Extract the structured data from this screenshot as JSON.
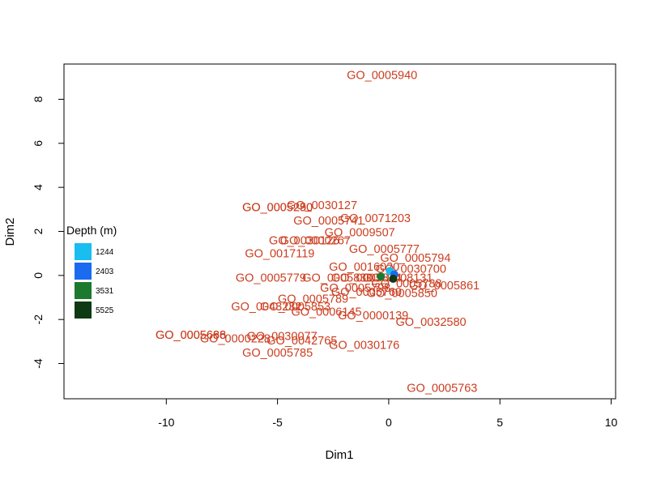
{
  "chart_data": {
    "type": "scatter",
    "xlabel": "Dim1",
    "ylabel": "Dim2",
    "xlim": [
      -14.6,
      10.2
    ],
    "ylim": [
      -5.6,
      9.6
    ],
    "x_ticks": [
      -10,
      -5,
      0,
      5,
      10
    ],
    "y_ticks": [
      -4,
      -2,
      0,
      2,
      4,
      6,
      8
    ],
    "x_tick_labels": [
      "-10",
      "-5",
      "0",
      "5",
      "10"
    ],
    "y_tick_labels": [
      "-4",
      "-2",
      "0",
      "2",
      "4",
      "6",
      "8"
    ],
    "grid": false,
    "label_color": "#cc3d1f",
    "go_terms": [
      {
        "label": "GO_0005940",
        "x": -0.3,
        "y": 9.1
      },
      {
        "label": "GO_0030127",
        "x": -3.0,
        "y": 3.2
      },
      {
        "label": "GO_0005290",
        "x": -5.0,
        "y": 3.1
      },
      {
        "label": "GO_0005250",
        "x": -5.0,
        "y": 3.1
      },
      {
        "label": "GO_0071203",
        "x": -0.6,
        "y": 2.6
      },
      {
        "label": "GO_0005741",
        "x": -2.7,
        "y": 2.5
      },
      {
        "label": "GO_0009507",
        "x": -1.3,
        "y": 1.96
      },
      {
        "label": "GO_0000267",
        "x": -3.3,
        "y": 1.6
      },
      {
        "label": "GO_0030126",
        "x": -3.8,
        "y": 1.6
      },
      {
        "label": "GO_0005777",
        "x": -0.2,
        "y": 1.2
      },
      {
        "label": "GO_0017119",
        "x": -4.9,
        "y": 1.0
      },
      {
        "label": "GO_0005794",
        "x": 1.2,
        "y": 0.8
      },
      {
        "label": "GO_0016020",
        "x": -1.1,
        "y": 0.4
      },
      {
        "label": "GO_0030700",
        "x": 1.0,
        "y": 0.3
      },
      {
        "label": "GO_0005779",
        "x": -5.3,
        "y": -0.1
      },
      {
        "label": "GO_0005830",
        "x": -2.3,
        "y": -0.1
      },
      {
        "label": "GO_0005874",
        "x": -1.0,
        "y": -0.1
      },
      {
        "label": "GO_0008131",
        "x": 0.4,
        "y": -0.1
      },
      {
        "label": "GO_0005861",
        "x": 2.5,
        "y": -0.45
      },
      {
        "label": "GO_0005788",
        "x": 0.8,
        "y": -0.35
      },
      {
        "label": "GO_0005798",
        "x": -1.5,
        "y": -0.55
      },
      {
        "label": "GO_0005760",
        "x": -1.0,
        "y": -0.75
      },
      {
        "label": "GO_0005850",
        "x": 0.6,
        "y": -0.8
      },
      {
        "label": "GO_0005789",
        "x": -3.4,
        "y": -1.05
      },
      {
        "label": "GO_0005853",
        "x": -4.2,
        "y": -1.4
      },
      {
        "label": "GO_0043232",
        "x": -5.5,
        "y": -1.4
      },
      {
        "label": "GO_0006145",
        "x": -2.8,
        "y": -1.65
      },
      {
        "label": "GO_0000139",
        "x": -0.7,
        "y": -1.8
      },
      {
        "label": "GO_0032580",
        "x": 1.9,
        "y": -2.1
      },
      {
        "label": "GO_0005666",
        "x": -8.9,
        "y": -2.7
      },
      {
        "label": "GO_0005688",
        "x": -8.9,
        "y": -2.7
      },
      {
        "label": "GO_0030077",
        "x": -4.8,
        "y": -2.75
      },
      {
        "label": "GO_0000228",
        "x": -6.9,
        "y": -2.85
      },
      {
        "label": "GO_0042765",
        "x": -3.9,
        "y": -2.95
      },
      {
        "label": "GO_0030176",
        "x": -1.1,
        "y": -3.15
      },
      {
        "label": "GO_0005785",
        "x": -5.0,
        "y": -3.5
      },
      {
        "label": "GO_0005763",
        "x": 2.4,
        "y": -5.1
      }
    ],
    "depth_points": [
      {
        "depth": "1244",
        "x": 0.05,
        "y": 0.2,
        "color": "#19bdf0"
      },
      {
        "depth": "2403",
        "x": 0.25,
        "y": 0.05,
        "color": "#1a6bf0"
      },
      {
        "depth": "3531",
        "x": -0.35,
        "y": -0.05,
        "color": "#1c7a2e"
      },
      {
        "depth": "5525",
        "x": 0.2,
        "y": -0.15,
        "color": "#0d3a12"
      }
    ],
    "legend": {
      "title": "Depth (m)",
      "placement": "left",
      "entries": [
        {
          "label": "1244",
          "color": "#19bdf0"
        },
        {
          "label": "2403",
          "color": "#1a6bf0"
        },
        {
          "label": "3531",
          "color": "#1c7a2e"
        },
        {
          "label": "5525",
          "color": "#0d3a12"
        }
      ]
    }
  }
}
